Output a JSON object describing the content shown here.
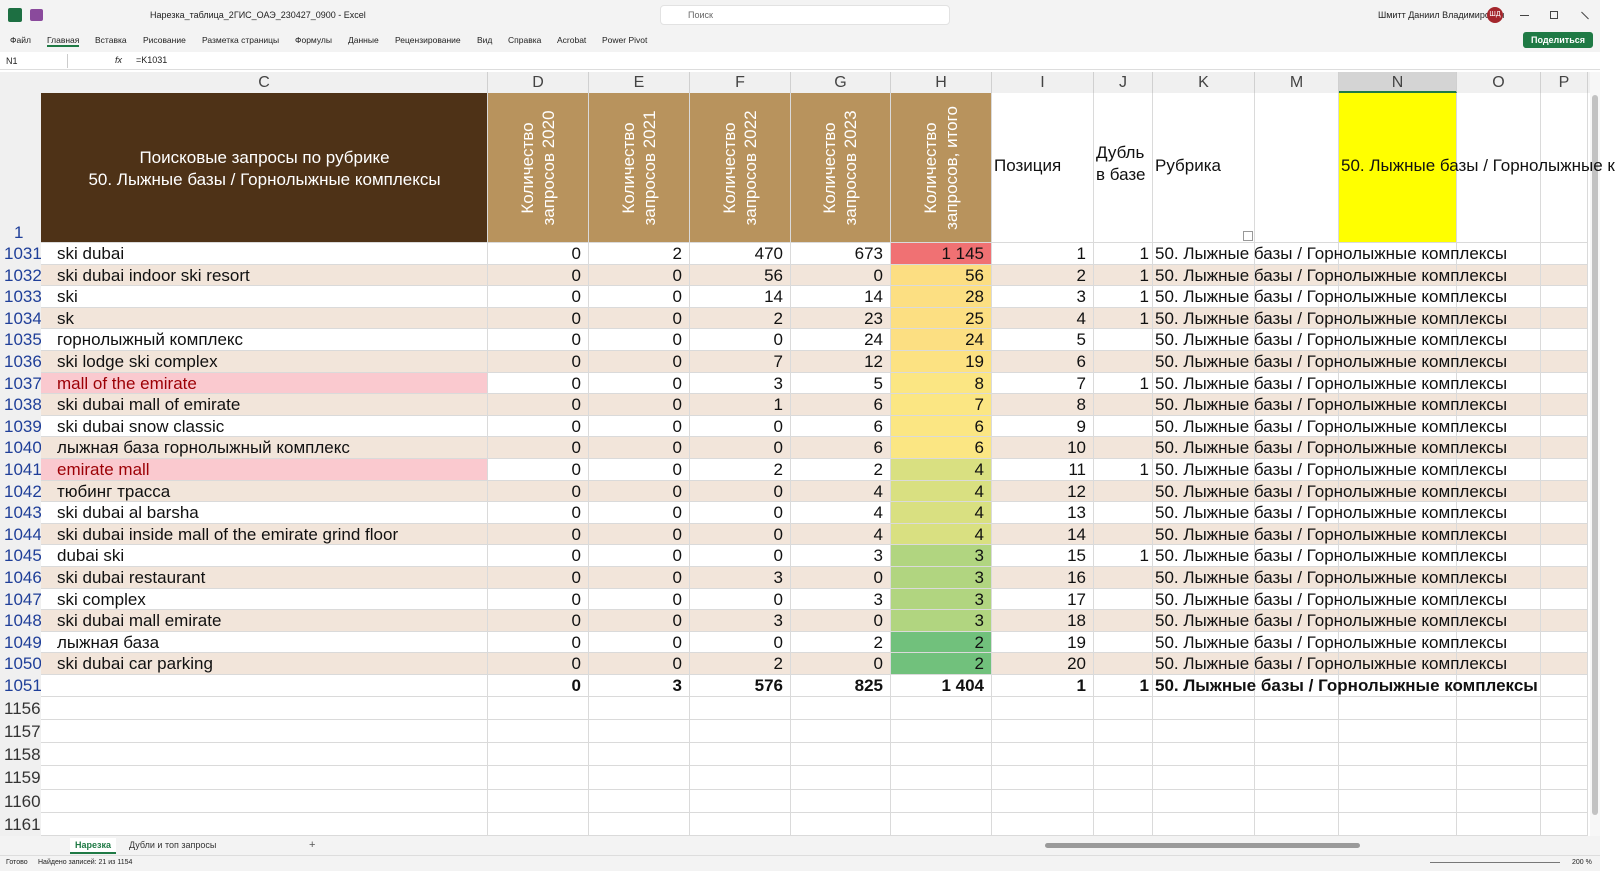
{
  "titlebar": {
    "filename": "Нарезка_таблица_2ГИС_ОАЭ_230427_0900 - Excel",
    "search": "Поиск",
    "user": "Шмитт Даниил Владимирович",
    "initials": "ШД"
  },
  "ribbon": {
    "tabs": [
      "Файл",
      "Главная",
      "Вставка",
      "Рисование",
      "Разметка страницы",
      "Формулы",
      "Данные",
      "Рецензирование",
      "Вид",
      "Справка",
      "Acrobat",
      "Power Pivot"
    ],
    "share": "Поделиться"
  },
  "formula_bar": {
    "name_box": "N1",
    "fx": "fx",
    "formula": "=K1031"
  },
  "sheet": {
    "columns": [
      "C",
      "D",
      "E",
      "F",
      "G",
      "H",
      "I",
      "J",
      "K",
      "M",
      "N",
      "O",
      "P"
    ],
    "header_row": "1",
    "header": [
      [
        "Поисковые запросы по рубрике",
        "50. Лыжные базы / Горнолыжные комплексы"
      ],
      "Количество запросов 2020",
      "Количество запросов 2021",
      "Количество запросов 2022",
      "Количество запросов 2023",
      "Количество запросов, итого",
      "Позиция",
      "Дубль в базе",
      "Рубрика",
      null,
      "50. Лыжные базы / Горнолыжные к",
      null,
      null
    ],
    "rows": [
      {
        "n": "1031",
        "cells": [
          "ski dubai",
          "0",
          "2",
          "470",
          "673",
          "1 145",
          "1",
          "1",
          "50. Лыжные базы / Горнолыжные комплексы"
        ]
      },
      {
        "n": "1032",
        "cells": [
          "ski dubai indoor ski resort",
          "0",
          "0",
          "56",
          "0",
          "56",
          "2",
          "1",
          "50. Лыжные базы / Горнолыжные комплексы"
        ]
      },
      {
        "n": "1033",
        "cells": [
          "ski",
          "0",
          "0",
          "14",
          "14",
          "28",
          "3",
          "1",
          "50. Лыжные базы / Горнолыжные комплексы"
        ]
      },
      {
        "n": "1034",
        "cells": [
          "sk",
          "0",
          "0",
          "2",
          "23",
          "25",
          "4",
          "1",
          "50. Лыжные базы / Горнолыжные комплексы"
        ]
      },
      {
        "n": "1035",
        "cells": [
          "горнолыжный комплекс",
          "0",
          "0",
          "0",
          "24",
          "24",
          "5",
          null,
          "50. Лыжные базы / Горнолыжные комплексы"
        ]
      },
      {
        "n": "1036",
        "cells": [
          "ski lodge ski complex",
          "0",
          "0",
          "7",
          "12",
          "19",
          "6",
          null,
          "50. Лыжные базы / Горнолыжные комплексы"
        ]
      },
      {
        "n": "1037",
        "cells": [
          "mall of the emirate",
          "0",
          "0",
          "3",
          "5",
          "8",
          "7",
          "1",
          "50. Лыжные базы / Горнолыжные комплексы"
        ]
      },
      {
        "n": "1038",
        "cells": [
          "ski dubai mall of emirate",
          "0",
          "0",
          "1",
          "6",
          "7",
          "8",
          null,
          "50. Лыжные базы / Горнолыжные комплексы"
        ]
      },
      {
        "n": "1039",
        "cells": [
          "ski dubai snow classic",
          "0",
          "0",
          "0",
          "6",
          "6",
          "9",
          null,
          "50. Лыжные базы / Горнолыжные комплексы"
        ]
      },
      {
        "n": "1040",
        "cells": [
          "лыжная база горнолыжный комплекс",
          "0",
          "0",
          "0",
          "6",
          "6",
          "10",
          null,
          "50. Лыжные базы / Горнолыжные комплексы"
        ]
      },
      {
        "n": "1041",
        "cells": [
          "emirate mall",
          "0",
          "0",
          "2",
          "2",
          "4",
          "11",
          "1",
          "50. Лыжные базы / Горнолыжные комплексы"
        ]
      },
      {
        "n": "1042",
        "cells": [
          "тюбинг трасса",
          "0",
          "0",
          "0",
          "4",
          "4",
          "12",
          null,
          "50. Лыжные базы / Горнолыжные комплексы"
        ]
      },
      {
        "n": "1043",
        "cells": [
          "ski dubai al barsha",
          "0",
          "0",
          "0",
          "4",
          "4",
          "13",
          null,
          "50. Лыжные базы / Горнолыжные комплексы"
        ]
      },
      {
        "n": "1044",
        "cells": [
          "ski dubai inside mall of the emirate grind floor",
          "0",
          "0",
          "0",
          "4",
          "4",
          "14",
          null,
          "50. Лыжные базы / Горнолыжные комплексы"
        ]
      },
      {
        "n": "1045",
        "cells": [
          "dubai ski",
          "0",
          "0",
          "0",
          "3",
          "3",
          "15",
          "1",
          "50. Лыжные базы / Горнолыжные комплексы"
        ]
      },
      {
        "n": "1046",
        "cells": [
          "ski dubai restaurant",
          "0",
          "0",
          "3",
          "0",
          "3",
          "16",
          null,
          "50. Лыжные базы / Горнолыжные комплексы"
        ]
      },
      {
        "n": "1047",
        "cells": [
          "ski complex",
          "0",
          "0",
          "0",
          "3",
          "3",
          "17",
          null,
          "50. Лыжные базы / Горнолыжные комплексы"
        ]
      },
      {
        "n": "1048",
        "cells": [
          "ski dubai mall emirate",
          "0",
          "0",
          "3",
          "0",
          "3",
          "18",
          null,
          "50. Лыжные базы / Горнолыжные комплексы"
        ]
      },
      {
        "n": "1049",
        "cells": [
          "лыжная база",
          "0",
          "0",
          "0",
          "2",
          "2",
          "19",
          null,
          "50. Лыжные базы / Горнолыжные комплексы"
        ]
      },
      {
        "n": "1050",
        "cells": [
          "ski dubai car parking",
          "0",
          "0",
          "2",
          "0",
          "2",
          "20",
          null,
          "50. Лыжные базы / Горнолыжные комплексы"
        ]
      }
    ],
    "total": {
      "n": "1051",
      "cells": [
        null,
        "0",
        "3",
        "576",
        "825",
        "1 404",
        "1",
        "1",
        "50. Лыжные базы / Горнолыжные комплексы"
      ]
    },
    "empty_rows": [
      "1156",
      "1157",
      "1158",
      "1159",
      "1160",
      "1161"
    ]
  },
  "sheet_tabs": {
    "tabs": [
      "Нарезка",
      "Дубли и топ запросы"
    ],
    "add": "+"
  },
  "status": {
    "ready": "Готово",
    "filter": "Найдено записей: 21 из 1154",
    "zoom": "200 %"
  }
}
